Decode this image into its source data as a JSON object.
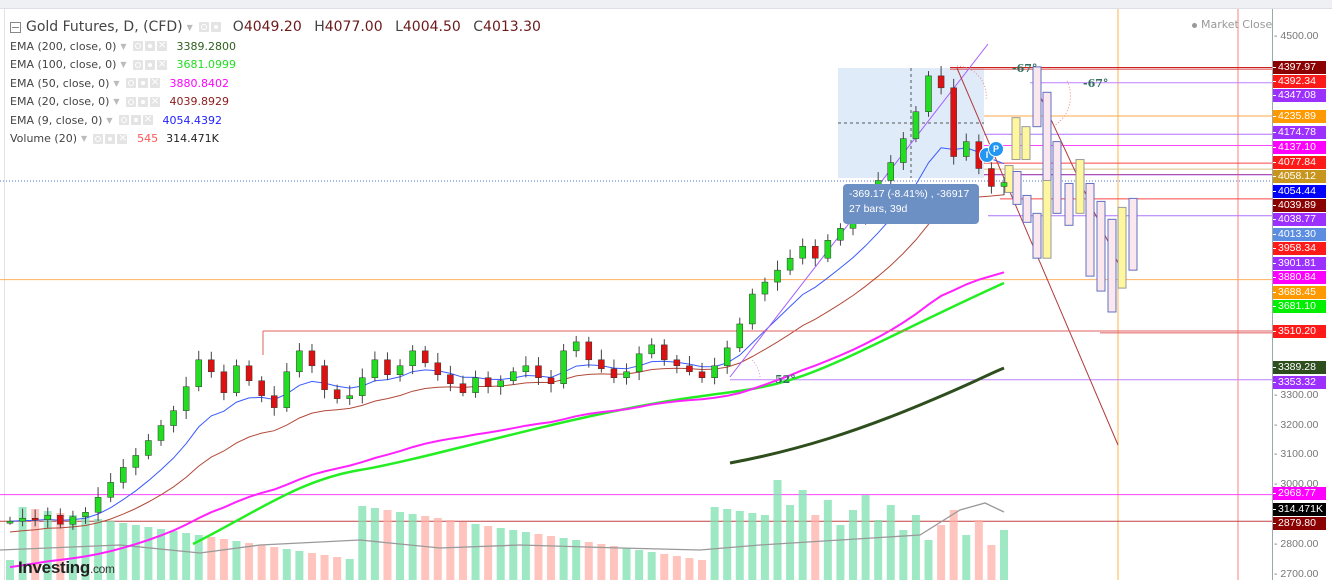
{
  "header": {
    "symbol": "Gold Futures, D, (CFD)",
    "ohlc": {
      "open_label": "O",
      "open": "4049.20",
      "high_label": "H",
      "high": "4077.00",
      "low_label": "L",
      "low": "4004.50",
      "close_label": "C",
      "close": "4013.30"
    },
    "market_status": "Market Closed"
  },
  "indicators": [
    {
      "label": "EMA (200, close, 0)",
      "value": "3389.2800",
      "color": "#2e5e1e"
    },
    {
      "label": "EMA (100, close, 0)",
      "value": "3681.0999",
      "color": "#22dd22"
    },
    {
      "label": "EMA (50, close, 0)",
      "value": "3880.8402",
      "color": "#ff00ff"
    },
    {
      "label": "EMA (20, close, 0)",
      "value": "4039.8929",
      "color": "#8b1a1a"
    },
    {
      "label": "EMA (9, close, 0)",
      "value": "4054.4392",
      "color": "#2222ff"
    },
    {
      "label": "Volume (20)",
      "value": "545",
      "value2": "314.471K",
      "color": "#ff5555"
    }
  ],
  "measure_tooltip": {
    "line1": "-369.17 (-8.41%) , -36917",
    "line2": "27 bars, 39d"
  },
  "angles": [
    "-67°",
    "-67°",
    "52°"
  ],
  "pins": [
    "I",
    "P"
  ],
  "logo": {
    "brand": "Investing",
    "suffix": ".com"
  },
  "price_axis": {
    "ticks": [
      "4500.00",
      "3300.00",
      "3200.00",
      "3100.00",
      "3000.00",
      "2800.00",
      "2700.00"
    ]
  },
  "price_labels": [
    {
      "value": "4397.97",
      "color": "#8b0000"
    },
    {
      "value": "4392.34",
      "color": "#ff1a1a"
    },
    {
      "value": "4347.08",
      "color": "#9b30ff"
    },
    {
      "value": "4235.89",
      "color": "#ff9900"
    },
    {
      "value": "4174.78",
      "color": "#9b30ff"
    },
    {
      "value": "4137.10",
      "color": "#ff00ff"
    },
    {
      "value": "4077.84",
      "color": "#ff1a1a"
    },
    {
      "value": "4058.12",
      "color": "#c8961e"
    },
    {
      "value": "4054.44",
      "color": "#0000ff"
    },
    {
      "value": "4039.89",
      "color": "#8b0000"
    },
    {
      "value": "4038.77",
      "color": "#9b30ff"
    },
    {
      "value": "4013.30",
      "color": "#5b8de0"
    },
    {
      "value": "3958.34",
      "color": "#ff1a1a"
    },
    {
      "value": "3901.81",
      "color": "#9b30ff"
    },
    {
      "value": "3880.84",
      "color": "#ff00ff"
    },
    {
      "value": "3688.45",
      "color": "#ff9900"
    },
    {
      "value": "3681.10",
      "color": "#00ee00"
    },
    {
      "value": "3510.20",
      "color": "#ff1a1a"
    },
    {
      "value": "3389.28",
      "color": "#2e4e1e"
    },
    {
      "value": "3353.32",
      "color": "#9b30ff"
    },
    {
      "value": "2968.77",
      "color": "#ff00ff"
    },
    {
      "value": "314.471K",
      "color": "#000000"
    },
    {
      "value": "2879.80",
      "color": "#8b0000"
    }
  ],
  "chart_data": {
    "type": "candlestick",
    "title": "Gold Futures, D, (CFD)",
    "timeframe": "D",
    "last_bar": {
      "open": 4049.2,
      "high": 4077.0,
      "low": 4004.5,
      "close": 4013.3
    },
    "ylim": [
      2700,
      4500
    ],
    "y_ticks": [
      2700,
      2800,
      3000,
      3100,
      3200,
      3300,
      4500
    ],
    "series": [
      {
        "name": "EMA 200",
        "last": 3389.28,
        "color": "#2e4e1e"
      },
      {
        "name": "EMA 100",
        "last": 3681.0999,
        "color": "#22dd22"
      },
      {
        "name": "EMA 50",
        "last": 3880.8402,
        "color": "#ff00ff"
      },
      {
        "name": "EMA 20",
        "last": 4039.8929,
        "color": "#8b1a1a"
      },
      {
        "name": "EMA 9",
        "last": 4054.4392,
        "color": "#2222ff"
      },
      {
        "name": "Volume (20)",
        "last": 545,
        "ma": "314.471K"
      }
    ],
    "horizontal_levels": [
      4397.97,
      4392.34,
      4347.08,
      4235.89,
      4174.78,
      4137.1,
      4077.84,
      4058.12,
      4054.44,
      4039.89,
      4038.77,
      3958.34,
      3901.81,
      3880.84,
      3688.45,
      3681.1,
      3510.2,
      3389.28,
      3353.32,
      2968.77,
      2879.8
    ],
    "approx_close_path": [
      2880,
      2890,
      2885,
      2900,
      2870,
      2895,
      2910,
      2960,
      3010,
      3060,
      3100,
      3150,
      3200,
      3250,
      3330,
      3420,
      3380,
      3310,
      3400,
      3350,
      3300,
      3260,
      3380,
      3450,
      3400,
      3320,
      3290,
      3300,
      3360,
      3420,
      3370,
      3400,
      3450,
      3410,
      3370,
      3340,
      3310,
      3360,
      3330,
      3350,
      3380,
      3400,
      3360,
      3340,
      3450,
      3480,
      3420,
      3390,
      3360,
      3380,
      3440,
      3470,
      3420,
      3400,
      3380,
      3360,
      3400,
      3460,
      3540,
      3640,
      3680,
      3720,
      3760,
      3800,
      3760,
      3820,
      3860,
      3900,
      3960,
      4020,
      4080,
      4160,
      4250,
      4370,
      4330,
      4100,
      4150,
      4060,
      4000,
      4013
    ],
    "annotations": [
      "-369.17 (-8.41%) , -36917",
      "27 bars, 39d",
      "-67°",
      "-67°",
      "52°"
    ]
  }
}
